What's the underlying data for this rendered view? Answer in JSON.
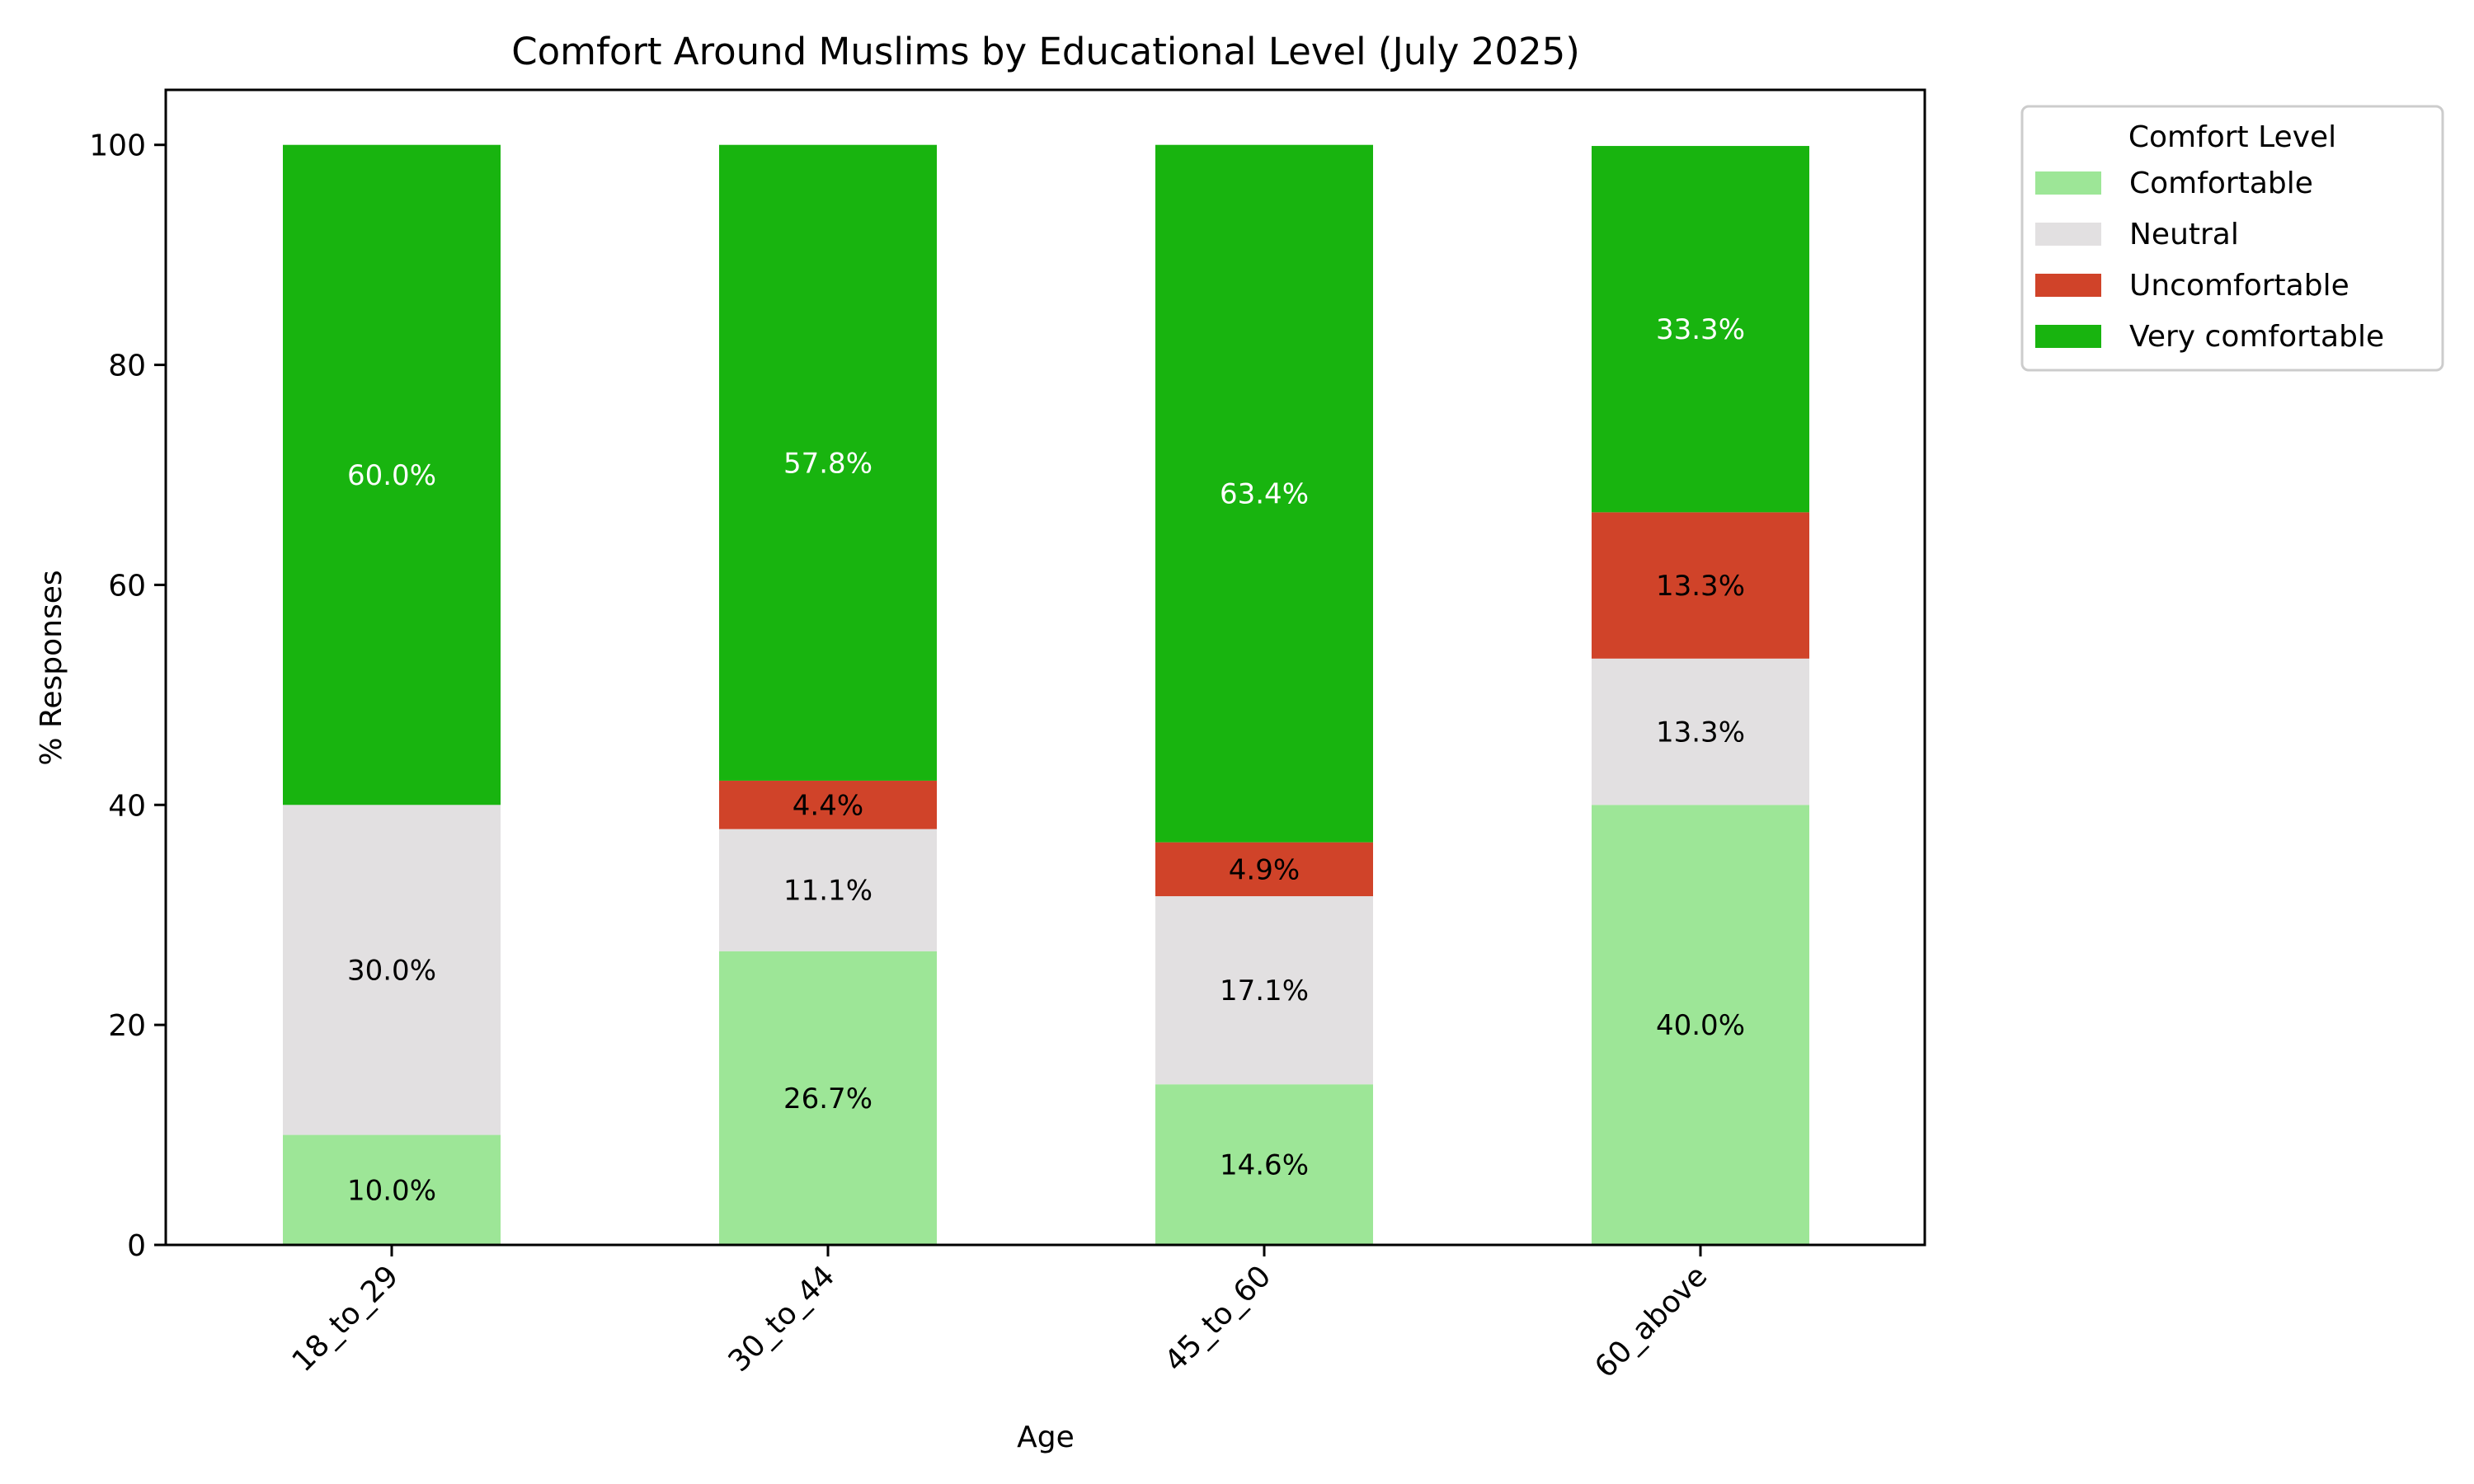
{
  "chart_data": {
    "type": "bar",
    "stacked": true,
    "title": "Comfort Around Muslims by Educational Level (July 2025)",
    "xlabel": "Age",
    "ylabel": "% Responses",
    "categories": [
      "18_to_29",
      "30_to_44",
      "45_to_60",
      "60_above"
    ],
    "ylim": [
      0,
      105
    ],
    "yticks": [
      0,
      20,
      40,
      60,
      80,
      100
    ],
    "grid": false,
    "legend": {
      "title": "Comfort Level",
      "placement": "outside upper right"
    },
    "series": [
      {
        "name": "Comfortable",
        "color": "#9de697",
        "label_color": "#000000",
        "values": [
          10.0,
          26.7,
          14.6,
          40.0
        ]
      },
      {
        "name": "Neutral",
        "color": "#e2e0e1",
        "label_color": "#000000",
        "values": [
          30.0,
          11.1,
          17.1,
          13.3
        ]
      },
      {
        "name": "Uncomfortable",
        "color": "#d04329",
        "label_color": "#000000",
        "values": [
          0,
          4.4,
          4.9,
          13.3
        ]
      },
      {
        "name": "Very comfortable",
        "color": "#18b40f",
        "label_color": "#ffffff",
        "values": [
          60.0,
          57.8,
          63.4,
          33.3
        ]
      }
    ]
  }
}
